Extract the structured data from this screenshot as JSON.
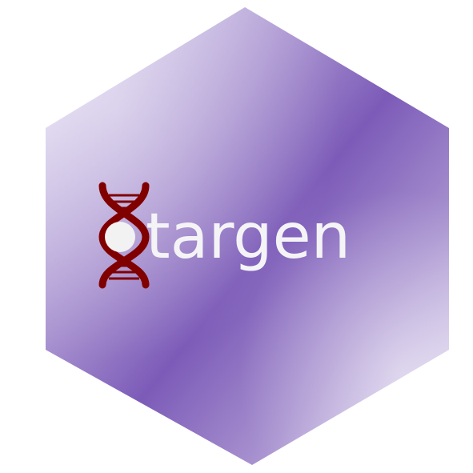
{
  "logo": {
    "word": "targen",
    "colors": {
      "hex_light": "#ddd6ef",
      "hex_mid": "#a993d0",
      "hex_dark": "#7c5bb8",
      "dna_strand": "#800000",
      "dot": "#f2f2f2",
      "word": "#f4f4f6"
    },
    "icon": "dna-helix-icon"
  }
}
